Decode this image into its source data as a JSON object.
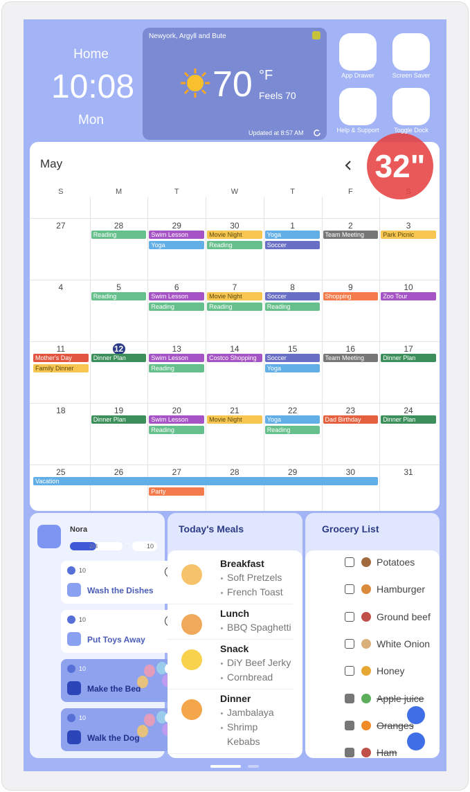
{
  "home": {
    "label": "Home",
    "time": "10:08",
    "day": "Mon"
  },
  "weather": {
    "location": "Newyork, Argyll and Bute",
    "temperature": "70",
    "unit": "°F",
    "feels_like": "Feels 70",
    "updated": "Updated at 8:57 AM"
  },
  "apps": [
    {
      "label": "App Drawer"
    },
    {
      "label": "Screen Saver"
    },
    {
      "label": "Help & Support"
    },
    {
      "label": "Toggle Dock"
    }
  ],
  "badge": "32\"",
  "calendar": {
    "month": "May",
    "weekdays": [
      "S",
      "M",
      "T",
      "W",
      "T",
      "F",
      "S"
    ],
    "weeks": [
      {
        "days": [
          {
            "date": 27,
            "events": []
          },
          {
            "date": 28,
            "events": [
              {
                "label": "Reading",
                "color": "#66c08c"
              }
            ]
          },
          {
            "date": 29,
            "events": [
              {
                "label": "Swim Lesson",
                "color": "#a653c6"
              },
              {
                "label": "Yoga",
                "color": "#62aee6"
              }
            ]
          },
          {
            "date": 30,
            "events": [
              {
                "label": "Movie Night",
                "color": "#f6c650"
              },
              {
                "label": "Reading",
                "color": "#66c08c"
              }
            ]
          },
          {
            "date": 1,
            "events": [
              {
                "label": "Yoga",
                "color": "#62aee6"
              },
              {
                "label": "Soccer",
                "color": "#6a6fc6"
              }
            ]
          },
          {
            "date": 2,
            "events": [
              {
                "label": "Team Meeting",
                "color": "#777777"
              }
            ]
          },
          {
            "date": 3,
            "events": [
              {
                "label": "Park Picnic",
                "color": "#f6c650"
              }
            ]
          }
        ]
      },
      {
        "days": [
          {
            "date": 4,
            "events": []
          },
          {
            "date": 5,
            "events": [
              {
                "label": "Reading",
                "color": "#66c08c"
              }
            ]
          },
          {
            "date": 6,
            "events": [
              {
                "label": "Swim Lesson",
                "color": "#a653c6"
              },
              {
                "label": "Reading",
                "color": "#66c08c"
              }
            ]
          },
          {
            "date": 7,
            "events": [
              {
                "label": "Movie Night",
                "color": "#f6c650"
              },
              {
                "label": "Reading",
                "color": "#66c08c"
              }
            ]
          },
          {
            "date": 8,
            "events": [
              {
                "label": "Soccer",
                "color": "#6a6fc6"
              },
              {
                "label": "Reading",
                "color": "#66c08c"
              }
            ]
          },
          {
            "date": 9,
            "events": [
              {
                "label": "Shopping",
                "color": "#f47c4c"
              }
            ]
          },
          {
            "date": 10,
            "events": [
              {
                "label": "Zoo Tour",
                "color": "#a653c6"
              }
            ]
          }
        ]
      },
      {
        "days": [
          {
            "date": 11,
            "events": [
              {
                "label": "Mother's Day",
                "color": "#e2553f"
              },
              {
                "label": "Family Dinner",
                "color": "#f6c650"
              }
            ]
          },
          {
            "date": 12,
            "today": true,
            "events": [
              {
                "label": "Dinner Plan",
                "color": "#3c8f5b"
              }
            ]
          },
          {
            "date": 13,
            "events": [
              {
                "label": "Swim Lesson",
                "color": "#a653c6"
              },
              {
                "label": "Reading",
                "color": "#66c08c"
              }
            ]
          },
          {
            "date": 14,
            "events": [
              {
                "label": "Costco Shopping",
                "color": "#a653c6"
              }
            ]
          },
          {
            "date": 15,
            "events": [
              {
                "label": "Soccer",
                "color": "#6a6fc6"
              },
              {
                "label": "Yoga",
                "color": "#62aee6"
              }
            ]
          },
          {
            "date": 16,
            "events": [
              {
                "label": "Team Meeting",
                "color": "#777777"
              }
            ]
          },
          {
            "date": 17,
            "events": [
              {
                "label": "Dinner Plan",
                "color": "#3c8f5b"
              }
            ]
          }
        ]
      },
      {
        "days": [
          {
            "date": 18,
            "events": []
          },
          {
            "date": 19,
            "events": [
              {
                "label": "Dinner Plan",
                "color": "#3c8f5b"
              }
            ]
          },
          {
            "date": 20,
            "events": [
              {
                "label": "Swim Lesson",
                "color": "#a653c6"
              },
              {
                "label": "Reading",
                "color": "#66c08c"
              }
            ]
          },
          {
            "date": 21,
            "events": [
              {
                "label": "Movie Night",
                "color": "#f6c650"
              }
            ]
          },
          {
            "date": 22,
            "events": [
              {
                "label": "Yoga",
                "color": "#62aee6"
              },
              {
                "label": "Reading",
                "color": "#66c08c"
              }
            ]
          },
          {
            "date": 23,
            "events": [
              {
                "label": "Dad Birthday",
                "color": "#e5603e"
              }
            ]
          },
          {
            "date": 24,
            "events": [
              {
                "label": "Dinner Plan",
                "color": "#3c8f5b"
              }
            ]
          }
        ]
      },
      {
        "days": [
          {
            "date": 25,
            "events": [
              {
                "label": "Vacation",
                "color": "#62aee6"
              }
            ]
          },
          {
            "date": 26,
            "events": []
          },
          {
            "date": 27,
            "events": [
              {
                "label": "Party",
                "color": "#f47c4c"
              }
            ]
          },
          {
            "date": 28,
            "events": []
          },
          {
            "date": 29,
            "events": []
          },
          {
            "date": 30,
            "events": []
          },
          {
            "date": 31,
            "events": []
          }
        ]
      }
    ]
  },
  "chores": {
    "user": "Nora",
    "progress": "2/4",
    "points": 10,
    "items": [
      {
        "title": "Wash the Dishes",
        "points": 10,
        "done": false
      },
      {
        "title": "Put Toys Away",
        "points": 10,
        "done": false
      },
      {
        "title": "Make the Bed",
        "points": 10,
        "done": true
      },
      {
        "title": "Walk the Dog",
        "points": 10,
        "done": true
      }
    ]
  },
  "meals": {
    "title": "Today's Meals",
    "items": [
      {
        "name": "Breakfast",
        "dishes": [
          "Soft Pretzels",
          "French Toast"
        ]
      },
      {
        "name": "Lunch",
        "dishes": [
          "BBQ Spaghetti"
        ]
      },
      {
        "name": "Snack",
        "dishes": [
          "DiY Beef Jerky",
          "Cornbread"
        ]
      },
      {
        "name": "Dinner",
        "dishes": [
          "Jambalaya",
          "Shrimp Kebabs"
        ]
      }
    ]
  },
  "grocery": {
    "title": "Grocery List",
    "items": [
      {
        "name": "Potatoes",
        "checked": false
      },
      {
        "name": "Hamburger",
        "checked": false
      },
      {
        "name": "Ground beef",
        "checked": false
      },
      {
        "name": "White Onion",
        "checked": false
      },
      {
        "name": "Honey",
        "checked": false
      },
      {
        "name": "Apple juice",
        "checked": true
      },
      {
        "name": "Oranges",
        "checked": true
      },
      {
        "name": "Ham",
        "checked": true
      }
    ]
  }
}
